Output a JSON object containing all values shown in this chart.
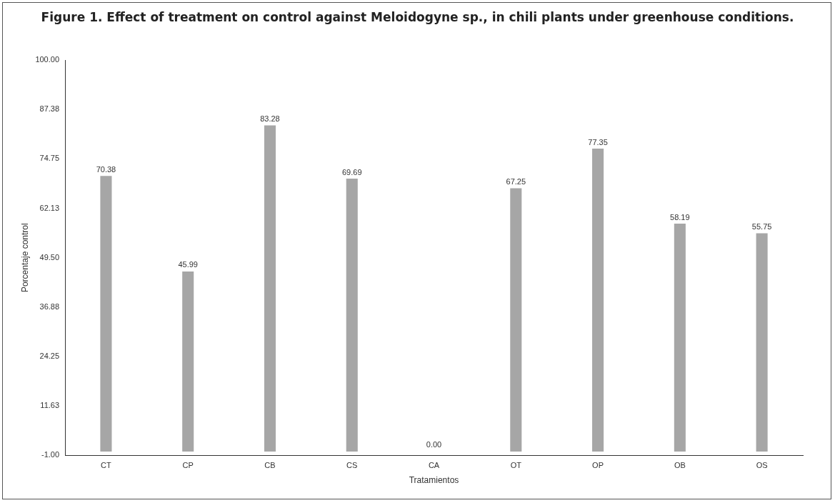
{
  "chart_data": {
    "type": "bar",
    "title": "Figure 1. Effect of treatment on control against Meloidogyne sp., in chili plants under greenhouse conditions.",
    "xlabel": "Tratamientos",
    "ylabel": "Porcentaje control",
    "categories": [
      "CT",
      "CP",
      "CB",
      "CS",
      "CA",
      "OT",
      "OP",
      "OB",
      "OS"
    ],
    "values": [
      70.38,
      45.99,
      83.28,
      69.69,
      0,
      67.25,
      77.35,
      58.19,
      55.75
    ],
    "value_labels": [
      "70.38",
      "45.99",
      "83.28",
      "69.69",
      "0.00",
      "67.25",
      "77.35",
      "58.19",
      "55.75"
    ],
    "color": "#a6a6a6",
    "ylim": [
      -1,
      100
    ],
    "yticks": [
      {
        "value": -1,
        "label": "-1.00"
      },
      {
        "value": 11.63,
        "label": "11.63"
      },
      {
        "value": 24.25,
        "label": "24.25"
      },
      {
        "value": 36.88,
        "label": "36.88"
      },
      {
        "value": 49.5,
        "label": "49.50"
      },
      {
        "value": 62.13,
        "label": "62.13"
      },
      {
        "value": 74.75,
        "label": "74.75"
      },
      {
        "value": 87.38,
        "label": "87.38"
      },
      {
        "value": 100,
        "label": "100.00"
      }
    ],
    "grid": false,
    "legend": false
  }
}
